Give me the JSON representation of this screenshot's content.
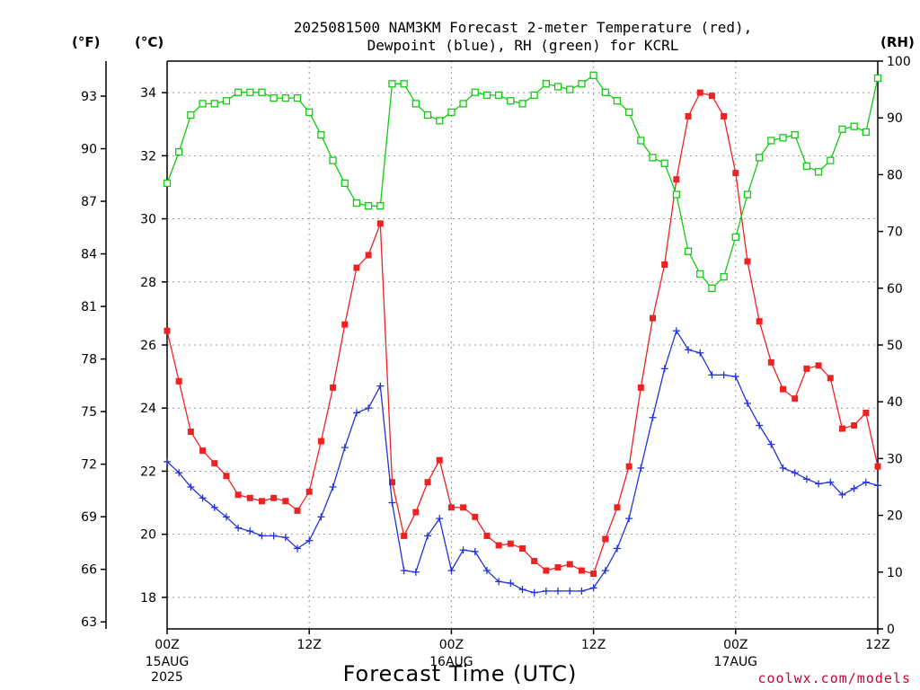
{
  "chart_data": {
    "type": "line",
    "title_line1": "2025081500 NAM3KM Forecast 2-meter Temperature (red),",
    "title_line2": "Dewpoint (blue), RH (green) for KCRL",
    "xlabel": "Forecast Time (UTC)",
    "credit": "coolwx.com/models",
    "unit_f": "(°F)",
    "unit_c": "(°C)",
    "unit_rh": "(RH)",
    "x_range_hours": [
      0,
      60
    ],
    "y_range_c": [
      17,
      35
    ],
    "y_range_rh": [
      0,
      100
    ],
    "grid": true,
    "x_ticks": [
      {
        "hour": 0,
        "label": "00Z",
        "sub1": "15AUG",
        "sub2": "2025"
      },
      {
        "hour": 12,
        "label": "12Z",
        "sub1": "",
        "sub2": ""
      },
      {
        "hour": 24,
        "label": "00Z",
        "sub1": "16AUG",
        "sub2": ""
      },
      {
        "hour": 36,
        "label": "12Z",
        "sub1": "",
        "sub2": ""
      },
      {
        "hour": 48,
        "label": "00Z",
        "sub1": "17AUG",
        "sub2": ""
      },
      {
        "hour": 60,
        "label": "12Z",
        "sub1": "",
        "sub2": ""
      }
    ],
    "celsius_ticks": [
      18,
      20,
      22,
      24,
      26,
      28,
      30,
      32,
      34
    ],
    "fahrenheit_ticks": [
      63,
      66,
      69,
      72,
      75,
      78,
      81,
      84,
      87,
      90,
      93
    ],
    "rh_ticks": [
      0,
      10,
      20,
      30,
      40,
      50,
      60,
      70,
      80,
      90,
      100
    ],
    "series": [
      {
        "name": "Temperature",
        "color": "#ee2222",
        "axis": "celsius",
        "marker": "filled-square",
        "values": [
          26.45,
          24.85,
          23.25,
          22.65,
          22.25,
          21.85,
          21.25,
          21.15,
          21.05,
          21.15,
          21.05,
          20.75,
          21.35,
          22.95,
          24.65,
          26.65,
          28.45,
          28.85,
          29.85,
          21.65,
          19.95,
          20.7,
          21.65,
          22.35,
          20.85,
          20.85,
          20.55,
          19.95,
          19.65,
          19.7,
          19.55,
          19.15,
          18.85,
          18.95,
          19.05,
          18.85,
          18.75,
          19.85,
          20.85,
          22.15,
          24.65,
          26.85,
          28.55,
          31.25,
          33.25,
          34.0,
          33.9,
          33.25,
          31.45,
          28.65,
          26.75,
          25.45,
          24.6,
          24.3,
          25.25,
          25.35,
          24.95,
          23.35,
          23.45,
          23.85,
          22.15
        ]
      },
      {
        "name": "Dewpoint",
        "color": "#2233dd",
        "axis": "celsius",
        "marker": "plus",
        "values": [
          22.3,
          21.95,
          21.5,
          21.15,
          20.85,
          20.55,
          20.2,
          20.1,
          19.95,
          19.95,
          19.9,
          19.55,
          19.8,
          20.55,
          21.5,
          22.75,
          23.85,
          24.0,
          24.7,
          21.0,
          18.85,
          18.8,
          19.95,
          20.5,
          18.85,
          19.5,
          19.45,
          18.85,
          18.5,
          18.45,
          18.25,
          18.15,
          18.2,
          18.2,
          18.2,
          18.2,
          18.3,
          18.85,
          19.55,
          20.5,
          22.1,
          23.7,
          25.25,
          26.45,
          25.85,
          25.75,
          25.05,
          25.05,
          25.0,
          24.15,
          23.45,
          22.85,
          22.1,
          21.95,
          21.75,
          21.6,
          21.65,
          21.25,
          21.45,
          21.65,
          21.55
        ]
      },
      {
        "name": "RH",
        "color": "#11cc11",
        "axis": "rh",
        "marker": "open-square",
        "values": [
          78.5,
          84.0,
          90.5,
          92.5,
          92.5,
          93.0,
          94.5,
          94.5,
          94.5,
          93.5,
          93.5,
          93.5,
          91.0,
          87.0,
          82.5,
          78.5,
          75.0,
          74.5,
          74.5,
          96.0,
          96.0,
          92.5,
          90.5,
          89.5,
          91.0,
          92.5,
          94.5,
          94.0,
          94.0,
          93.0,
          92.5,
          94.0,
          96.0,
          95.5,
          95.0,
          96.0,
          97.5,
          94.5,
          93.0,
          91.0,
          86.0,
          83.0,
          82.0,
          76.5,
          66.5,
          62.5,
          60.0,
          62.0,
          69.0,
          76.5,
          83.0,
          86.0,
          86.5,
          87.0,
          81.5,
          80.5,
          82.5,
          88.0,
          88.5,
          87.5,
          97.0
        ]
      }
    ]
  }
}
